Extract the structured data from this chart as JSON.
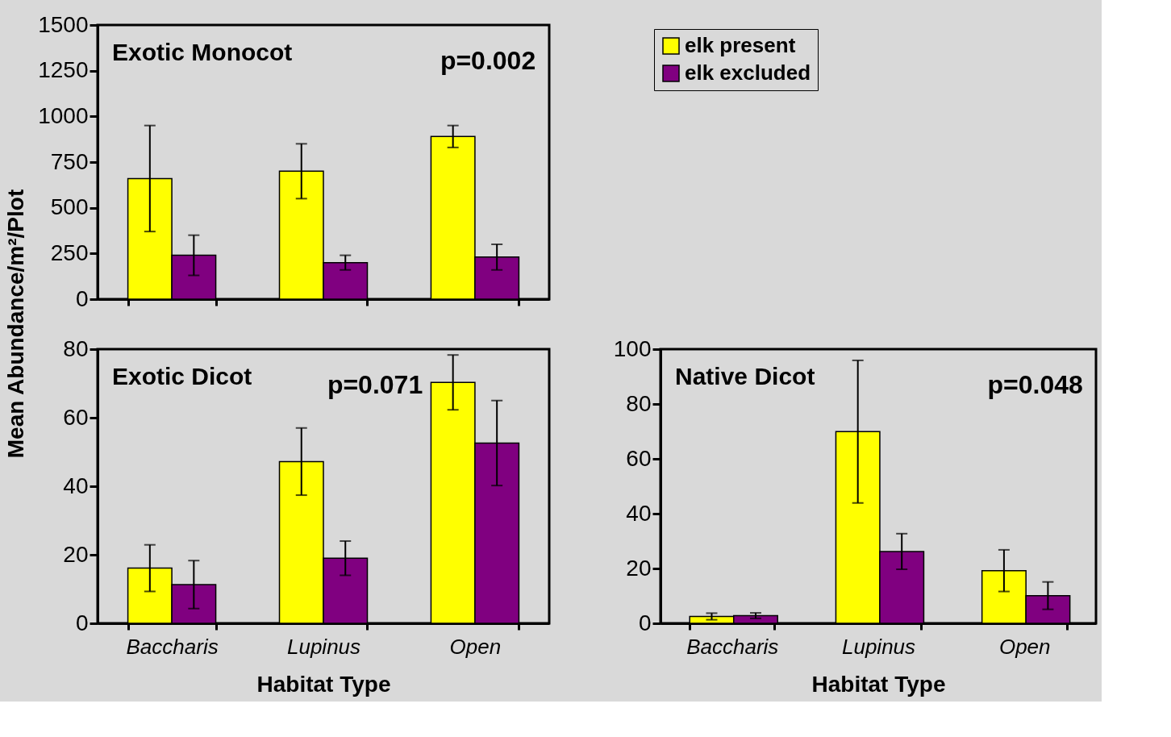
{
  "chart_data": [
    {
      "type": "bar",
      "title": "Exotic Monocot",
      "annotations": [
        "p=0.002"
      ],
      "categories": [
        "Baccharis",
        "Lupinus",
        "Open"
      ],
      "ylim": [
        0,
        1500
      ],
      "yticks": [
        0,
        250,
        500,
        750,
        1000,
        1250,
        1500
      ],
      "ylabel": "Mean Abundance/m²/Plot",
      "tick_labels": "y",
      "legend": "right",
      "series": [
        {
          "name": "elk present",
          "color": "#ffff00",
          "values": [
            660,
            700,
            890
          ],
          "errors": [
            290,
            150,
            60
          ]
        },
        {
          "name": "elk excluded",
          "color": "#800080",
          "values": [
            240,
            200,
            230
          ],
          "errors": [
            110,
            40,
            70
          ]
        }
      ]
    },
    {
      "type": "bar",
      "title": "Exotic Dicot",
      "annotations": [
        "p=0.071"
      ],
      "categories": [
        "Baccharis",
        "Lupinus",
        "Open"
      ],
      "ylim": [
        0,
        80
      ],
      "yticks": [
        0,
        20,
        40,
        60,
        80
      ],
      "xlabel": "Habitat Type",
      "series": [
        {
          "name": "elk present",
          "color": "#ffff00",
          "values": [
            16.1,
            47.2,
            70.3
          ],
          "errors": [
            6.8,
            9.8,
            8
          ]
        },
        {
          "name": "elk excluded",
          "color": "#800080",
          "values": [
            11.3,
            19,
            52.6
          ],
          "errors": [
            7,
            5,
            12.4
          ]
        }
      ]
    },
    {
      "type": "bar",
      "title": "Native Dicot",
      "annotations": [
        "p=0.048"
      ],
      "categories": [
        "Baccharis",
        "Lupinus",
        "Open"
      ],
      "ylim": [
        0,
        100
      ],
      "yticks": [
        0,
        20,
        40,
        60,
        80,
        100
      ],
      "xlabel": "Habitat Type",
      "series": [
        {
          "name": "elk present",
          "color": "#ffff00",
          "values": [
            2.5,
            69.9,
            19.2
          ],
          "errors": [
            1.2,
            26,
            7.6
          ]
        },
        {
          "name": "elk excluded",
          "color": "#800080",
          "values": [
            2.8,
            26.2,
            10.1
          ],
          "errors": [
            1,
            6.5,
            5
          ]
        }
      ]
    }
  ]
}
